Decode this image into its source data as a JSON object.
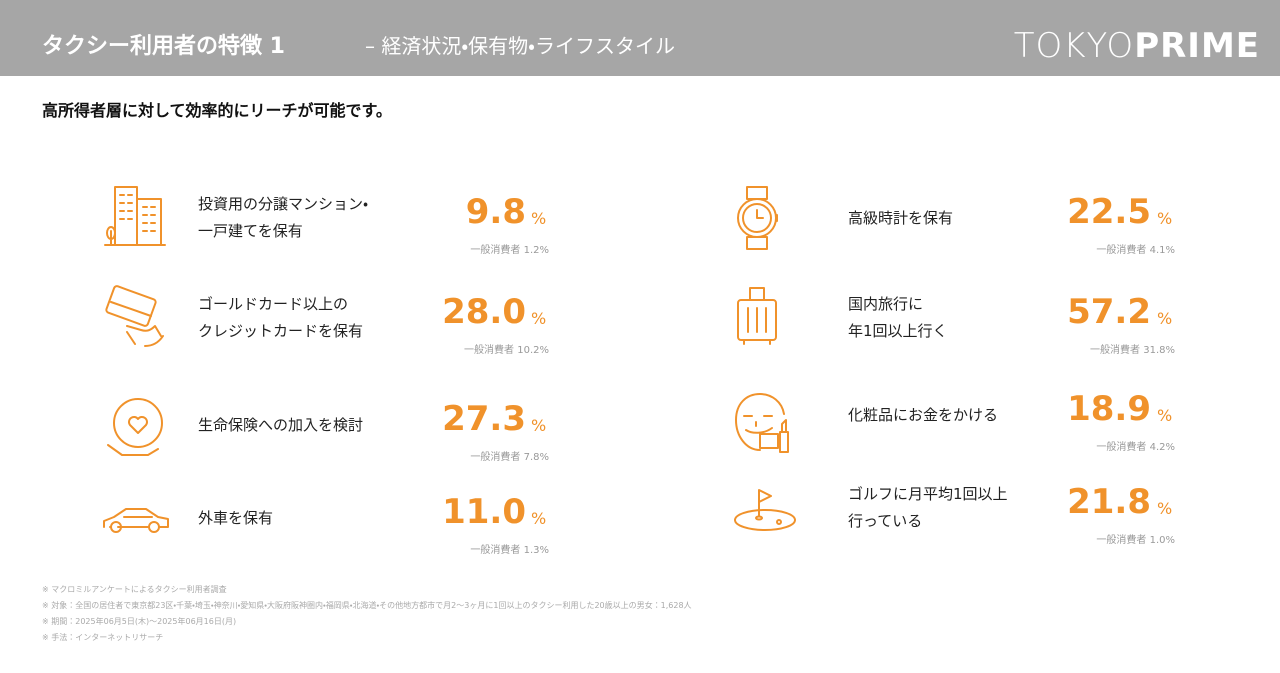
{
  "header": {
    "title": "タクシー利用者の特徴 1",
    "subtitle": "– 経済状況・保有物・ライフスタイル",
    "logo": {
      "light": "TOKYO",
      "bold": "PRIME"
    }
  },
  "lead": "高所得者層に対して効率的にリーチが可能です。",
  "columns": [
    [
      {
        "label": [
          "投資用の分譲マンション・",
          "一戸建てを保有"
        ],
        "value": "9.8",
        "unit": "%",
        "compare": "一般消費者 1.2%"
      },
      {
        "label": [
          "ゴールドカード以上の",
          "クレジットカードを保有"
        ],
        "value": "28.0",
        "unit": "%",
        "compare": "一般消費者 10.2%"
      },
      {
        "label": [
          "生命保険への加入を検討"
        ],
        "value": "27.3",
        "unit": "%",
        "compare": "一般消費者 7.8%"
      },
      {
        "label": [
          "外車を保有"
        ],
        "value": "11.0",
        "unit": "%",
        "compare": "一般消費者 1.3%"
      }
    ],
    [
      {
        "label": [
          "高級時計を保有"
        ],
        "value": "22.5",
        "unit": "%",
        "compare": "一般消費者 4.1%"
      },
      {
        "label": [
          "国内旅行に",
          "年1回以上行く"
        ],
        "value": "57.2",
        "unit": "%",
        "compare": "一般消費者 31.8%"
      },
      {
        "label": [
          "化粧品にお金をかける"
        ],
        "value": "18.9",
        "unit": "%",
        "compare": "一般消費者 4.2%"
      },
      {
        "label": [
          "ゴルフに月平均1回以上",
          "行っている"
        ],
        "value": "21.8",
        "unit": "%",
        "compare": "一般消費者 1.0%"
      }
    ]
  ],
  "footnotes": [
    "※ マクロミルアンケートによるタクシー利用者調査",
    "※ 対象：全国の居住者で東京都23区・千葉・埼玉・神奈川・愛知県・大阪府阪神圏内・福岡県・北海道・その他地方都市で月2～3ヶ月に1回以上のタクシー利用した20歳以上の男女：1,628人",
    "※ 期間：2025年06月5日(木)～2025年06月16日(月)",
    "※ 手法：インターネットリサーチ"
  ]
}
